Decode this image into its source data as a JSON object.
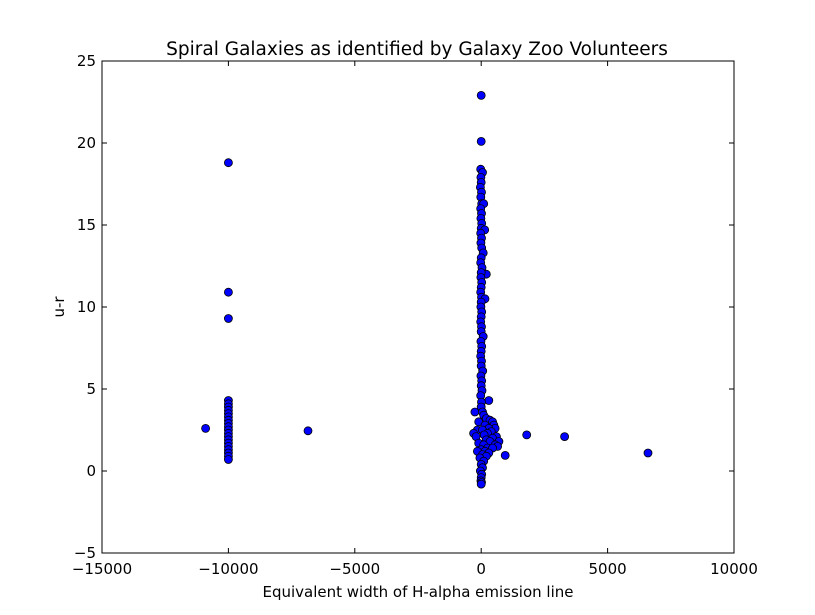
{
  "chart_data": {
    "type": "scatter",
    "title": "Spiral Galaxies as identified by Galaxy Zoo Volunteers",
    "xlabel": "Equivalent width of H-alpha emission line",
    "ylabel": "u-r",
    "xlim": [
      -15000,
      10000
    ],
    "ylim": [
      -5,
      25
    ],
    "x_ticks": [
      -15000,
      -10000,
      -5000,
      0,
      5000,
      10000
    ],
    "x_tick_labels": [
      "−15000",
      "−10000",
      "−5000",
      "0",
      "5000",
      "10000"
    ],
    "y_ticks": [
      -5,
      0,
      5,
      10,
      15,
      20,
      25
    ],
    "y_tick_labels": [
      "−5",
      "0",
      "5",
      "10",
      "15",
      "20",
      "25"
    ],
    "grid": false,
    "legend": "none",
    "marker_color": "#0000ff",
    "marker_edge_color": "#000000",
    "points": [
      {
        "x": -10000,
        "y": 18.8
      },
      {
        "x": -10000,
        "y": 10.9
      },
      {
        "x": -10000,
        "y": 9.3
      },
      {
        "x": -10000,
        "y": 4.3
      },
      {
        "x": -10000,
        "y": 4.1
      },
      {
        "x": -10000,
        "y": 3.9
      },
      {
        "x": -10000,
        "y": 3.7
      },
      {
        "x": -10000,
        "y": 3.5
      },
      {
        "x": -10000,
        "y": 3.3
      },
      {
        "x": -10000,
        "y": 3.1
      },
      {
        "x": -10000,
        "y": 2.9
      },
      {
        "x": -10000,
        "y": 2.7
      },
      {
        "x": -10000,
        "y": 2.5
      },
      {
        "x": -10000,
        "y": 2.3
      },
      {
        "x": -10000,
        "y": 2.1
      },
      {
        "x": -10000,
        "y": 1.9
      },
      {
        "x": -10000,
        "y": 1.7
      },
      {
        "x": -10000,
        "y": 1.5
      },
      {
        "x": -10000,
        "y": 1.3
      },
      {
        "x": -10000,
        "y": 1.1
      },
      {
        "x": -10000,
        "y": 0.9
      },
      {
        "x": -10000,
        "y": 0.7
      },
      {
        "x": -10900,
        "y": 2.6
      },
      {
        "x": -6850,
        "y": 2.45
      },
      {
        "x": 0,
        "y": 22.9
      },
      {
        "x": 0,
        "y": 20.1
      },
      {
        "x": -20,
        "y": 18.4
      },
      {
        "x": 50,
        "y": 18.2
      },
      {
        "x": -10,
        "y": 17.9
      },
      {
        "x": 0,
        "y": 17.6
      },
      {
        "x": -30,
        "y": 17.3
      },
      {
        "x": 10,
        "y": 17.0
      },
      {
        "x": -15,
        "y": 16.7
      },
      {
        "x": 20,
        "y": 16.3
      },
      {
        "x": 100,
        "y": 16.3
      },
      {
        "x": -20,
        "y": 16.0
      },
      {
        "x": 10,
        "y": 15.7
      },
      {
        "x": -10,
        "y": 15.4
      },
      {
        "x": 20,
        "y": 15.1
      },
      {
        "x": 0,
        "y": 14.8
      },
      {
        "x": 140,
        "y": 14.7
      },
      {
        "x": -20,
        "y": 14.5
      },
      {
        "x": 10,
        "y": 14.2
      },
      {
        "x": -10,
        "y": 13.9
      },
      {
        "x": 20,
        "y": 13.6
      },
      {
        "x": 80,
        "y": 13.3
      },
      {
        "x": 0,
        "y": 13.0
      },
      {
        "x": -20,
        "y": 12.7
      },
      {
        "x": 30,
        "y": 12.4
      },
      {
        "x": 200,
        "y": 12.0
      },
      {
        "x": 0,
        "y": 12.1
      },
      {
        "x": -10,
        "y": 11.8
      },
      {
        "x": 20,
        "y": 11.5
      },
      {
        "x": 0,
        "y": 11.2
      },
      {
        "x": -20,
        "y": 10.9
      },
      {
        "x": 10,
        "y": 10.6
      },
      {
        "x": 150,
        "y": 10.5
      },
      {
        "x": 0,
        "y": 10.3
      },
      {
        "x": -10,
        "y": 10.0
      },
      {
        "x": 20,
        "y": 9.7
      },
      {
        "x": 0,
        "y": 9.4
      },
      {
        "x": -20,
        "y": 9.1
      },
      {
        "x": 10,
        "y": 8.8
      },
      {
        "x": 0,
        "y": 8.5
      },
      {
        "x": 80,
        "y": 8.2
      },
      {
        "x": -10,
        "y": 7.9
      },
      {
        "x": 20,
        "y": 7.6
      },
      {
        "x": 0,
        "y": 7.3
      },
      {
        "x": -20,
        "y": 7.0
      },
      {
        "x": 10,
        "y": 6.7
      },
      {
        "x": 0,
        "y": 6.4
      },
      {
        "x": 60,
        "y": 6.1
      },
      {
        "x": -10,
        "y": 5.8
      },
      {
        "x": 20,
        "y": 5.5
      },
      {
        "x": 0,
        "y": 5.2
      },
      {
        "x": 30,
        "y": 4.9
      },
      {
        "x": -20,
        "y": 4.6
      },
      {
        "x": 300,
        "y": 4.3
      },
      {
        "x": 10,
        "y": 4.2
      },
      {
        "x": 0,
        "y": 3.9
      },
      {
        "x": -250,
        "y": 3.6
      },
      {
        "x": 50,
        "y": 3.6
      },
      {
        "x": 100,
        "y": 3.4
      },
      {
        "x": 200,
        "y": 3.2
      },
      {
        "x": 350,
        "y": 3.1
      },
      {
        "x": 450,
        "y": 3.0
      },
      {
        "x": -100,
        "y": 3.0
      },
      {
        "x": 500,
        "y": 2.8
      },
      {
        "x": 150,
        "y": 2.8
      },
      {
        "x": 550,
        "y": 2.6
      },
      {
        "x": 300,
        "y": 2.6
      },
      {
        "x": -150,
        "y": 2.5
      },
      {
        "x": 50,
        "y": 2.5
      },
      {
        "x": 400,
        "y": 2.4
      },
      {
        "x": 250,
        "y": 2.3
      },
      {
        "x": -300,
        "y": 2.3
      },
      {
        "x": 120,
        "y": 2.2
      },
      {
        "x": 600,
        "y": 2.1
      },
      {
        "x": -200,
        "y": 2.1
      },
      {
        "x": 450,
        "y": 2.0
      },
      {
        "x": 200,
        "y": 1.9
      },
      {
        "x": 700,
        "y": 1.8
      },
      {
        "x": 350,
        "y": 1.8
      },
      {
        "x": -100,
        "y": 1.7
      },
      {
        "x": 550,
        "y": 1.6
      },
      {
        "x": 100,
        "y": 1.6
      },
      {
        "x": 650,
        "y": 1.5
      },
      {
        "x": 250,
        "y": 1.4
      },
      {
        "x": 450,
        "y": 1.4
      },
      {
        "x": 0,
        "y": 1.3
      },
      {
        "x": 150,
        "y": 1.2
      },
      {
        "x": -150,
        "y": 1.2
      },
      {
        "x": 300,
        "y": 1.1
      },
      {
        "x": 50,
        "y": 1.0
      },
      {
        "x": 950,
        "y": 0.95
      },
      {
        "x": 200,
        "y": 0.9
      },
      {
        "x": -50,
        "y": 0.8
      },
      {
        "x": 100,
        "y": 0.6
      },
      {
        "x": 0,
        "y": 0.4
      },
      {
        "x": 50,
        "y": 0.2
      },
      {
        "x": -30,
        "y": 0.0
      },
      {
        "x": 20,
        "y": -0.2
      },
      {
        "x": 0,
        "y": -0.4
      },
      {
        "x": -10,
        "y": -0.6
      },
      {
        "x": 10,
        "y": -0.7
      },
      {
        "x": 0,
        "y": -0.8
      },
      {
        "x": 1800,
        "y": 2.2
      },
      {
        "x": 3300,
        "y": 2.1
      },
      {
        "x": 6600,
        "y": 1.1
      }
    ]
  }
}
